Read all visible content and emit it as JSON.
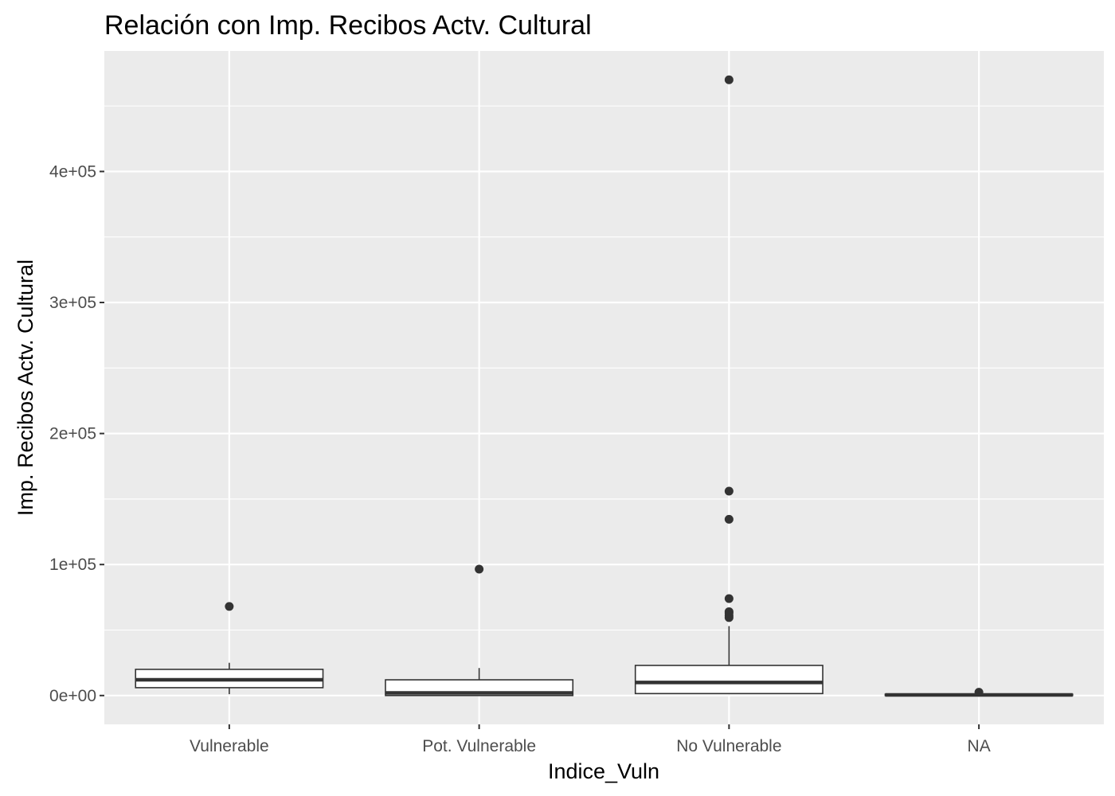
{
  "chart_data": {
    "type": "boxplot",
    "title": "Relación con Imp. Recibos Actv. Cultural",
    "xlabel": "Indice_Vuln",
    "ylabel": "Imp. Recibos Actv. Cultural",
    "categories": [
      "Vulnerable",
      "Pot. Vulnerable",
      "No Vulnerable",
      "NA"
    ],
    "ylim": [
      -22000,
      492000
    ],
    "yticks": [
      0,
      100000,
      200000,
      300000,
      400000
    ],
    "ytick_labels": [
      "0e+00",
      "1e+05",
      "2e+05",
      "3e+05",
      "4e+05"
    ],
    "grid": true,
    "boxes": [
      {
        "category": "Vulnerable",
        "whisker_low": 1000,
        "q1": 6000,
        "median": 12000,
        "q3": 20000,
        "whisker_high": 25000,
        "outliers": [
          68000
        ]
      },
      {
        "category": "Pot. Vulnerable",
        "whisker_low": 0,
        "q1": 0,
        "median": 2000,
        "q3": 12000,
        "whisker_high": 21000,
        "outliers": [
          96500
        ]
      },
      {
        "category": "No Vulnerable",
        "whisker_low": 1000,
        "q1": 1500,
        "median": 10000,
        "q3": 23000,
        "whisker_high": 53000,
        "outliers": [
          59500,
          61000,
          63000,
          64000,
          74000,
          134500,
          156000,
          470000
        ]
      },
      {
        "category": "NA",
        "whisker_low": 0,
        "q1": 0,
        "median": 500,
        "q3": 1000,
        "whisker_high": 1500,
        "outliers": [
          2500
        ]
      }
    ],
    "colors": {
      "panel_background": "#ebebeb",
      "grid_major": "#ffffff",
      "box_fill": "#ffffff",
      "box_stroke": "#333333",
      "point": "#333333"
    }
  }
}
